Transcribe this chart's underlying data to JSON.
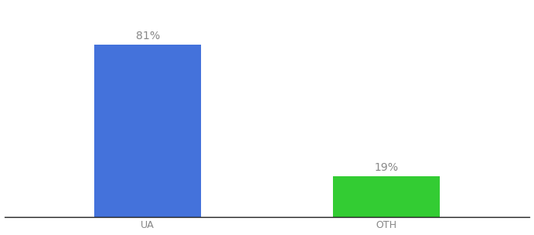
{
  "categories": [
    "UA",
    "OTH"
  ],
  "values": [
    81,
    19
  ],
  "bar_colors": [
    "#4472db",
    "#33cc33"
  ],
  "label_texts": [
    "81%",
    "19%"
  ],
  "background_color": "#ffffff",
  "text_color": "#888888",
  "label_fontsize": 10,
  "tick_fontsize": 9,
  "bar_width": 0.45,
  "ylim": [
    0,
    100
  ],
  "xlim": [
    -0.6,
    1.6
  ]
}
